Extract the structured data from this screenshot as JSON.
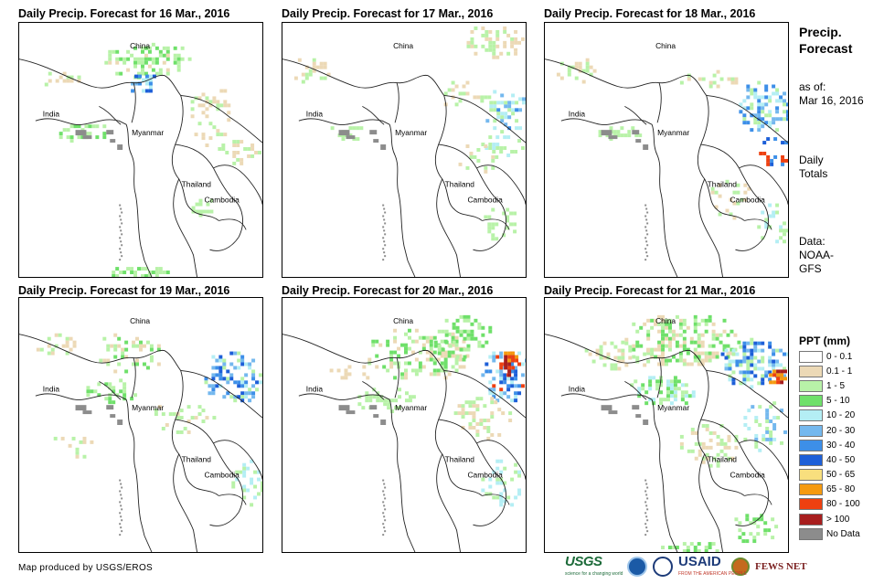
{
  "panels": [
    {
      "title": "Daily Precip. Forecast for 16 Mar., 2016"
    },
    {
      "title": "Daily Precip. Forecast for 17 Mar., 2016"
    },
    {
      "title": "Daily Precip. Forecast for 18 Mar., 2016"
    },
    {
      "title": "Daily Precip. Forecast for 19 Mar., 2016"
    },
    {
      "title": "Daily Precip. Forecast for 20 Mar., 2016"
    },
    {
      "title": "Daily Precip. Forecast for 21 Mar., 2016"
    }
  ],
  "places": {
    "china": "China",
    "india": "India",
    "myanmar": "Myanmar",
    "thailand": "Thailand",
    "cambodia": "Cambodia"
  },
  "sidebar": {
    "title_line1": "Precip.",
    "title_line2": "Forecast",
    "asof_label": "as of:",
    "asof_date": "Mar 16, 2016",
    "totals_line1": "Daily",
    "totals_line2": "Totals",
    "data_line1": "Data:",
    "data_line2": "NOAA-",
    "data_line3": "GFS"
  },
  "legend": {
    "title": "PPT (mm)",
    "items": [
      {
        "label": "0 - 0.1",
        "color": "#ffffff"
      },
      {
        "label": "0.1 - 1",
        "color": "#ecd9b6"
      },
      {
        "label": "1 - 5",
        "color": "#b8f2a8"
      },
      {
        "label": "5 - 10",
        "color": "#6fe06a"
      },
      {
        "label": "10 - 20",
        "color": "#b4eef4"
      },
      {
        "label": "20 - 30",
        "color": "#74b8ee"
      },
      {
        "label": "30 - 40",
        "color": "#3d8fe8"
      },
      {
        "label": "40 - 50",
        "color": "#1d5fd8"
      },
      {
        "label": "50 - 65",
        "color": "#f8df7e"
      },
      {
        "label": "65 - 80",
        "color": "#f59a10"
      },
      {
        "label": "80 - 100",
        "color": "#ee4010"
      },
      {
        "label": "> 100",
        "color": "#a81e1e"
      },
      {
        "label": "No Data",
        "color": "#8c8c8c"
      }
    ]
  },
  "footer": {
    "credit": "Map produced by USGS/EROS",
    "usgs": "USGS",
    "usgs_tagline": "science for a changing world",
    "usaid": "USAID",
    "usaid_tagline": "FROM THE AMERICAN PEOPLE",
    "fews": "FEWS NET"
  }
}
